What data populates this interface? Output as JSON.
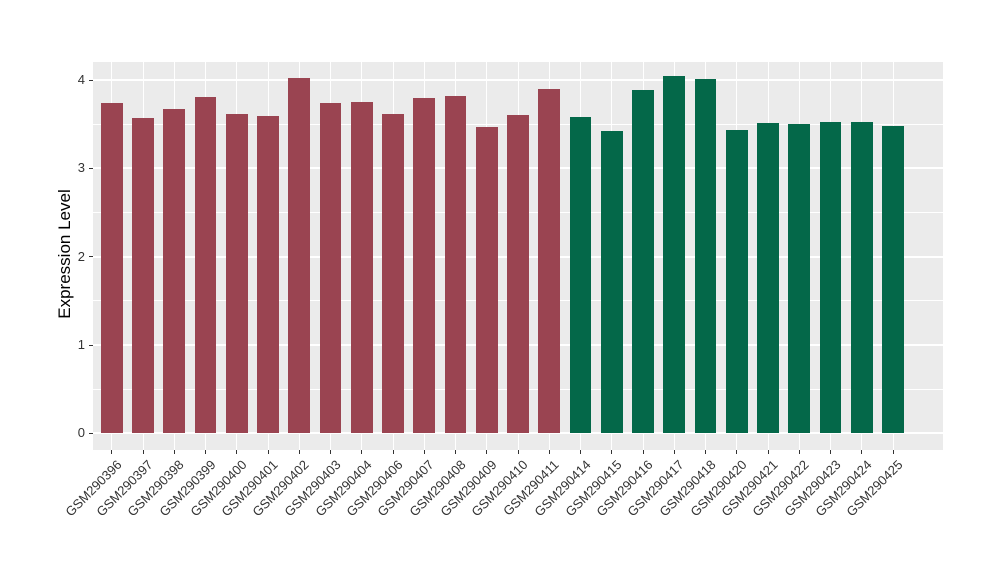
{
  "chart_data": {
    "type": "bar",
    "title": "",
    "xlabel": "",
    "ylabel": "Expression Level",
    "ylim": [
      0,
      4.2
    ],
    "y_major_ticks": [
      0,
      1,
      2,
      3,
      4
    ],
    "y_minor_gridlines": [
      0.5,
      1.5,
      2.5,
      3.5
    ],
    "grid": "on",
    "legend": "none",
    "panel_bg": "#EBEBEB",
    "grid_color": "#FFFFFF",
    "tick_color": "#333333",
    "tick_label_color": "#333333",
    "bar_width_ratio": 0.7,
    "categories": [
      "GSM290396",
      "GSM290397",
      "GSM290398",
      "GSM290399",
      "GSM290400",
      "GSM290401",
      "GSM290402",
      "GSM290403",
      "GSM290404",
      "GSM290406",
      "GSM290407",
      "GSM290408",
      "GSM290409",
      "GSM290410",
      "GSM290411",
      "GSM290414",
      "GSM290415",
      "GSM290416",
      "GSM290417",
      "GSM290418",
      "GSM290420",
      "GSM290421",
      "GSM290422",
      "GSM290423",
      "GSM290424",
      "GSM290425"
    ],
    "values": [
      3.74,
      3.57,
      3.67,
      3.81,
      3.62,
      3.59,
      4.02,
      3.74,
      3.75,
      3.62,
      3.8,
      3.82,
      3.47,
      3.61,
      3.9,
      3.58,
      3.42,
      3.89,
      4.05,
      4.01,
      3.43,
      3.51,
      3.5,
      3.53,
      3.53,
      3.48
    ],
    "groups": [
      "A",
      "A",
      "A",
      "A",
      "A",
      "A",
      "A",
      "A",
      "A",
      "A",
      "A",
      "A",
      "A",
      "A",
      "A",
      "B",
      "B",
      "B",
      "B",
      "B",
      "B",
      "B",
      "B",
      "B",
      "B",
      "B"
    ],
    "group_colors": {
      "A": "#9A4451",
      "B": "#046849"
    }
  }
}
